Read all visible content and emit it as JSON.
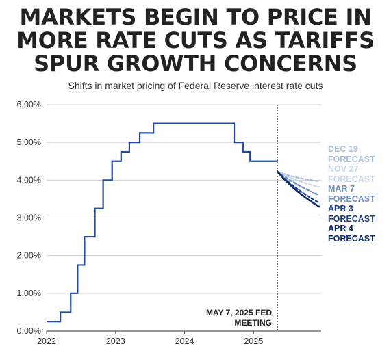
{
  "title_lines": [
    "MARKETS BEGIN TO PRICE IN",
    "MORE RATE CUTS AS TARIFFS",
    "SPUR GROWTH CONCERNS"
  ],
  "subtitle": "Shifts in market pricing of Federal Reserve interest rate cuts",
  "annotation": [
    "MAY 7, 2025 FED",
    "MEETING"
  ],
  "chart_data": {
    "type": "line",
    "title": "MARKETS BEGIN TO PRICE IN MORE RATE CUTS AS TARIFFS SPUR GROWTH CONCERNS",
    "subtitle": "Shifts in market pricing of Federal Reserve interest rate cuts",
    "xlabel": "",
    "ylabel": "",
    "xlim": [
      2022.0,
      2025.98
    ],
    "ylim": [
      0,
      6
    ],
    "yticks": [
      0,
      1,
      2,
      3,
      4,
      5,
      6
    ],
    "ytick_labels": [
      "0.00%",
      "1.00%",
      "2.00%",
      "3.00%",
      "4.00%",
      "5.00%",
      "6.00%"
    ],
    "xticks": [
      2022,
      2023,
      2024,
      2025
    ],
    "xtick_labels": [
      "2022",
      "2023",
      "2024",
      "2025"
    ],
    "grid": true,
    "legend_position": "right",
    "marker_line_x": 2025.35,
    "fed_rate": {
      "color": "#1f4aa8",
      "step": "post",
      "x": [
        2022.0,
        2022.2,
        2022.35,
        2022.45,
        2022.55,
        2022.7,
        2022.82,
        2022.95,
        2023.08,
        2023.2,
        2023.35,
        2023.55,
        2024.72,
        2024.85,
        2024.95,
        2025.35
      ],
      "y": [
        0.25,
        0.5,
        1.0,
        1.75,
        2.5,
        3.25,
        4.0,
        4.5,
        4.75,
        5.0,
        5.25,
        5.5,
        5.0,
        4.75,
        4.5,
        4.5
      ]
    },
    "forecasts": [
      {
        "name": "DEC 19 FORECAST",
        "color": "#a9bedb",
        "dashed": true,
        "x": [
          2025.35,
          2025.6,
          2025.95
        ],
        "y": [
          4.22,
          4.05,
          3.97
        ]
      },
      {
        "name": "NOV 27 FORECAST",
        "color": "#c9d6e8",
        "dashed": true,
        "x": [
          2025.35,
          2025.6,
          2025.95
        ],
        "y": [
          4.22,
          3.97,
          3.82
        ]
      },
      {
        "name": "MAR 7 FORECAST",
        "color": "#6f8fc0",
        "dashed": true,
        "x": [
          2025.35,
          2025.6,
          2025.95
        ],
        "y": [
          4.22,
          3.88,
          3.6
        ]
      },
      {
        "name": "APR 3 FORECAST",
        "color": "#1d3f8f",
        "dashed": true,
        "x": [
          2025.35,
          2025.6,
          2025.95
        ],
        "y": [
          4.22,
          3.75,
          3.4
        ]
      },
      {
        "name": "APR 4 FORECAST",
        "color": "#0c2a6e",
        "dashed": false,
        "x": [
          2025.35,
          2025.6,
          2025.95
        ],
        "y": [
          4.22,
          3.68,
          3.3
        ]
      }
    ]
  }
}
